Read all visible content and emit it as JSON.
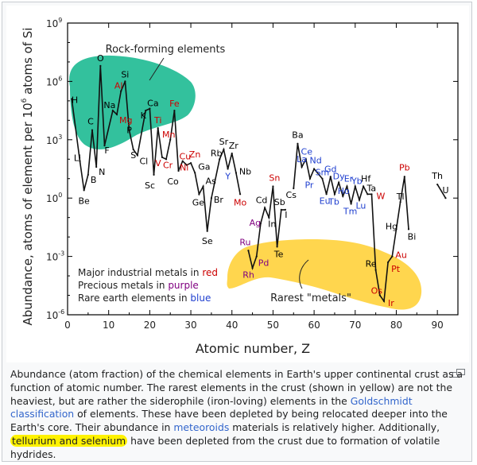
{
  "chart_data": {
    "type": "line",
    "xlabel": "Atomic number, Z",
    "ylabel": "Abundance, atoms of element per 10 6 atoms of Si",
    "xlim": [
      0,
      95
    ],
    "ylim_log10": [
      -6,
      9
    ],
    "x_ticks": [
      "0",
      "10",
      "20",
      "30",
      "40",
      "50",
      "60",
      "70",
      "80",
      "90"
    ],
    "y_ticks": [
      {
        "base": "10",
        "exp": "9",
        "value": 9
      },
      {
        "base": "10",
        "exp": "6",
        "value": 6
      },
      {
        "base": "10",
        "exp": "3",
        "value": 3
      },
      {
        "base": "10",
        "exp": "0",
        "value": 0
      },
      {
        "base": "10",
        "exp": "-3",
        "value": -3
      },
      {
        "base": "10",
        "exp": "-6",
        "value": -6
      }
    ],
    "series_segments": [
      [
        {
          "z": 1,
          "log": 5.1,
          "label": "H",
          "color": "#000000",
          "dx": 8,
          "dy": 5,
          "anchor": "end"
        },
        {
          "z": 3,
          "log": 1.9,
          "label": "Li",
          "color": "#000000",
          "dx": -3,
          "dy": 0,
          "anchor": "middle"
        },
        {
          "z": 4,
          "log": 0.4,
          "label": "Be",
          "color": "#000000",
          "dx": 0,
          "dy": 17,
          "anchor": "middle"
        },
        {
          "z": 5,
          "log": 1.2,
          "label": "B",
          "color": "#000000",
          "dx": 3,
          "dy": 10,
          "anchor": "start"
        },
        {
          "z": 6,
          "log": 3.5,
          "label": "C",
          "color": "#000000",
          "dx": -2,
          "dy": -7,
          "anchor": "middle"
        },
        {
          "z": 7,
          "log": 1.6,
          "label": "N",
          "color": "#000000",
          "dx": 3,
          "dy": 10,
          "anchor": "start"
        },
        {
          "z": 8,
          "log": 6.8,
          "label": "O",
          "color": "#000000",
          "dx": 0,
          "dy": -6,
          "anchor": "middle"
        },
        {
          "z": 9,
          "log": 2.7,
          "label": "F",
          "color": "#000000",
          "dx": 3,
          "dy": 10,
          "anchor": "middle"
        },
        {
          "z": 11,
          "log": 4.5,
          "label": "Na",
          "color": "#000000",
          "dx": -4,
          "dy": -3,
          "anchor": "middle"
        },
        {
          "z": 12,
          "log": 4.3,
          "label": "Mg",
          "color": "#cc0000",
          "dx": 3,
          "dy": 11,
          "anchor": "start"
        },
        {
          "z": 13,
          "log": 5.5,
          "label": "Al",
          "color": "#cc0000",
          "dx": -3,
          "dy": -3,
          "anchor": "middle"
        },
        {
          "z": 14,
          "log": 6.0,
          "label": "Si",
          "color": "#000000",
          "dx": 0,
          "dy": -5,
          "anchor": "middle"
        },
        {
          "z": 15,
          "log": 3.5,
          "label": "P",
          "color": "#000000",
          "dx": 0,
          "dy": 4,
          "anchor": "middle"
        },
        {
          "z": 16,
          "log": 2.5,
          "label": "S",
          "color": "#000000",
          "dx": 0,
          "dy": 11,
          "anchor": "middle"
        },
        {
          "z": 17,
          "log": 2.2,
          "label": "Cl",
          "color": "#000000",
          "dx": 8,
          "dy": 11,
          "anchor": "middle"
        },
        {
          "z": 19,
          "log": 4.5,
          "label": "K",
          "color": "#000000",
          "dx": -3,
          "dy": 10,
          "anchor": "middle"
        },
        {
          "z": 20,
          "log": 4.6,
          "label": "Ca",
          "color": "#000000",
          "dx": 4,
          "dy": -3,
          "anchor": "middle"
        },
        {
          "z": 21,
          "log": 1.2,
          "label": "Sc",
          "color": "#000000",
          "dx": -5,
          "dy": 17,
          "anchor": "middle"
        },
        {
          "z": 22,
          "log": 3.6,
          "label": "Ti",
          "color": "#cc0000",
          "dx": 0,
          "dy": -6,
          "anchor": "middle"
        },
        {
          "z": 23,
          "log": 2.1,
          "label": "V",
          "color": "#cc0000",
          "dx": -5,
          "dy": 11,
          "anchor": "middle"
        },
        {
          "z": 24,
          "log": 2.0,
          "label": "Cr",
          "color": "#cc0000",
          "dx": 2,
          "dy": 11,
          "anchor": "middle"
        },
        {
          "z": 25,
          "log": 3.0,
          "label": "Mn",
          "color": "#cc0000",
          "dx": -2,
          "dy": -3,
          "anchor": "middle"
        },
        {
          "z": 26,
          "log": 4.5,
          "label": "Fe",
          "color": "#cc0000",
          "dx": 0,
          "dy": -5,
          "anchor": "middle"
        },
        {
          "z": 27,
          "log": 1.4,
          "label": "Co",
          "color": "#000000",
          "dx": -7,
          "dy": 17,
          "anchor": "middle"
        },
        {
          "z": 28,
          "log": 1.9,
          "label": "Ni",
          "color": "#cc0000",
          "dx": 2,
          "dy": 12,
          "anchor": "middle"
        },
        {
          "z": 29,
          "log": 1.7,
          "label": "Cu",
          "color": "#cc0000",
          "dx": -2,
          "dy": -7,
          "anchor": "middle"
        },
        {
          "z": 30,
          "log": 1.8,
          "label": "Zn",
          "color": "#cc0000",
          "dx": 5,
          "dy": -7,
          "anchor": "middle"
        },
        {
          "z": 31,
          "log": 1.3,
          "label": "Ga",
          "color": "#000000",
          "dx": 4,
          "dy": -4,
          "anchor": "start"
        },
        {
          "z": 32,
          "log": 0.2,
          "label": "Ge",
          "color": "#000000",
          "dx": -1,
          "dy": 14,
          "anchor": "middle"
        },
        {
          "z": 33,
          "log": 0.6,
          "label": "As",
          "color": "#000000",
          "dx": 3,
          "dy": -3,
          "anchor": "start"
        },
        {
          "z": 34,
          "log": -1.7,
          "label": "Se",
          "color": "#000000",
          "dx": 0,
          "dy": 16,
          "anchor": "middle"
        },
        {
          "z": 35,
          "log": 0.0,
          "label": "Br",
          "color": "#000000",
          "dx": 3,
          "dy": 6,
          "anchor": "start"
        },
        {
          "z": 37,
          "log": 2.0,
          "label": "Rb",
          "color": "#000000",
          "dx": -4,
          "dy": -4,
          "anchor": "middle"
        },
        {
          "z": 38,
          "log": 2.5,
          "label": "Sr",
          "color": "#000000",
          "dx": 0,
          "dy": -6,
          "anchor": "middle"
        },
        {
          "z": 39,
          "log": 1.5,
          "label": "Y",
          "color": "#1f3fcf",
          "dx": 0,
          "dy": 13,
          "anchor": "middle"
        },
        {
          "z": 40,
          "log": 2.3,
          "label": "Zr",
          "color": "#000000",
          "dx": 2,
          "dy": -6,
          "anchor": "middle"
        },
        {
          "z": 41,
          "log": 1.3,
          "label": "Nb",
          "color": "#000000",
          "dx": 4,
          "dy": 2,
          "anchor": "start"
        },
        {
          "z": 42,
          "log": 0.2,
          "label": "Mo",
          "color": "#cc0000",
          "dx": 0,
          "dy": 14,
          "anchor": "middle"
        }
      ],
      [
        {
          "z": 44,
          "log": -2.7,
          "label": "Ru",
          "color": "#800080",
          "dx": -4,
          "dy": -7,
          "anchor": "middle"
        },
        {
          "z": 45,
          "log": -3.6,
          "label": "Rh",
          "color": "#800080",
          "dx": -5,
          "dy": 12,
          "anchor": "middle"
        },
        {
          "z": 46,
          "log": -3.0,
          "label": "Pd",
          "color": "#800080",
          "dx": 2,
          "dy": 12,
          "anchor": "start"
        },
        {
          "z": 47,
          "log": -1.3,
          "label": "Ag",
          "color": "#800080",
          "dx": -7,
          "dy": 3,
          "anchor": "middle"
        },
        {
          "z": 48,
          "log": -0.5,
          "label": "Cd",
          "color": "#000000",
          "dx": -4,
          "dy": -6,
          "anchor": "middle"
        },
        {
          "z": 49,
          "log": -1.0,
          "label": "In",
          "color": "#000000",
          "dx": 4,
          "dy": 12,
          "anchor": "middle"
        },
        {
          "z": 50,
          "log": 0.6,
          "label": "Sn",
          "color": "#cc0000",
          "dx": 2,
          "dy": -7,
          "anchor": "middle"
        },
        {
          "z": 51,
          "log": -2.5,
          "label": "Te",
          "color": "#000000",
          "dx": 2,
          "dy": 13,
          "anchor": "middle"
        },
        {
          "z": 52,
          "log": -0.6,
          "label": "Sb",
          "color": "#000000",
          "dx": -2,
          "dy": -6,
          "anchor": "middle"
        },
        {
          "z": 53,
          "log": -0.6,
          "label": "I",
          "color": "#000000",
          "dx": 1,
          "dy": 10,
          "anchor": "middle"
        }
      ],
      [
        {
          "z": 55,
          "log": 0.5,
          "label": "Cs",
          "color": "#000000",
          "dx": -3,
          "dy": 12,
          "anchor": "middle"
        },
        {
          "z": 56,
          "log": 2.8,
          "label": "Ba",
          "color": "#000000",
          "dx": 0,
          "dy": -7,
          "anchor": "middle"
        },
        {
          "z": 57,
          "log": 1.6,
          "label": "La",
          "color": "#1f3fcf",
          "dx": 0,
          "dy": -6,
          "anchor": "middle"
        },
        {
          "z": 58,
          "log": 2.0,
          "label": "Ce",
          "color": "#1f3fcf",
          "dx": 1,
          "dy": -6,
          "anchor": "middle"
        },
        {
          "z": 59,
          "log": 1.0,
          "label": "Pr",
          "color": "#1f3fcf",
          "dx": -1,
          "dy": 12,
          "anchor": "middle"
        },
        {
          "z": 60,
          "log": 1.5,
          "label": "Nd",
          "color": "#1f3fcf",
          "dx": 2,
          "dy": -7,
          "anchor": "middle"
        },
        {
          "z": 62,
          "log": 1.0,
          "label": "Sm",
          "color": "#1f3fcf",
          "dx": 0,
          "dy": -4,
          "anchor": "middle"
        },
        {
          "z": 63,
          "log": 0.2,
          "label": "Eu",
          "color": "#1f3fcf",
          "dx": -2,
          "dy": 12,
          "anchor": "middle"
        },
        {
          "z": 64,
          "log": 1.1,
          "label": "Gd",
          "color": "#1f3fcf",
          "dx": 0,
          "dy": -6,
          "anchor": "middle"
        },
        {
          "z": 65,
          "log": 0.2,
          "label": "Tb",
          "color": "#1f3fcf",
          "dx": -1,
          "dy": 13,
          "anchor": "middle"
        },
        {
          "z": 66,
          "log": 0.8,
          "label": "Dy",
          "color": "#1f3fcf",
          "dx": 0,
          "dy": -4,
          "anchor": "middle"
        },
        {
          "z": 67,
          "log": 0.1,
          "label": "Ho",
          "color": "#1f3fcf",
          "dx": 1,
          "dy": -3,
          "anchor": "middle"
        },
        {
          "z": 68,
          "log": 0.6,
          "label": "Er",
          "color": "#1f3fcf",
          "dx": 2,
          "dy": -6,
          "anchor": "middle"
        },
        {
          "z": 69,
          "log": -0.3,
          "label": "Tm",
          "color": "#1f3fcf",
          "dx": -1,
          "dy": 13,
          "anchor": "middle"
        },
        {
          "z": 70,
          "log": 0.6,
          "label": "Yb",
          "color": "#1f3fcf",
          "dx": 2,
          "dy": -3,
          "anchor": "middle"
        },
        {
          "z": 71,
          "log": -0.1,
          "label": "Lu",
          "color": "#1f3fcf",
          "dx": 2,
          "dy": 11,
          "anchor": "middle"
        },
        {
          "z": 72,
          "log": 0.6,
          "label": "Hf",
          "color": "#000000",
          "dx": 3,
          "dy": -6,
          "anchor": "middle"
        },
        {
          "z": 73,
          "log": 0.2,
          "label": "Ta",
          "color": "#000000",
          "dx": 5,
          "dy": -4,
          "anchor": "middle"
        },
        {
          "z": 74,
          "log": 0.2,
          "label": "W",
          "color": "#cc0000",
          "dx": 6,
          "dy": 6,
          "anchor": "start"
        },
        {
          "z": 75,
          "log": -3.7,
          "label": "Re",
          "color": "#000000",
          "dx": -6,
          "dy": -4,
          "anchor": "middle"
        },
        {
          "z": 76,
          "log": -5.0,
          "label": "Os",
          "color": "#cc0000",
          "dx": -4,
          "dy": -2,
          "anchor": "middle"
        },
        {
          "z": 77,
          "log": -5.3,
          "label": "Ir",
          "color": "#cc0000",
          "dx": 5,
          "dy": 6,
          "anchor": "start"
        },
        {
          "z": 78,
          "log": -3.3,
          "label": "Pt",
          "color": "#cc0000",
          "dx": 4,
          "dy": 12,
          "anchor": "start"
        },
        {
          "z": 79,
          "log": -3.0,
          "label": "Au",
          "color": "#cc0000",
          "dx": 4,
          "dy": 2,
          "anchor": "start"
        },
        {
          "z": 80,
          "log": -1.6,
          "label": "Hg",
          "color": "#000000",
          "dx": -6,
          "dy": 0,
          "anchor": "middle"
        },
        {
          "z": 81,
          "log": -0.2,
          "label": "Tl",
          "color": "#000000",
          "dx": 0,
          "dy": -3,
          "anchor": "middle"
        },
        {
          "z": 82,
          "log": 1.1,
          "label": "Pb",
          "color": "#cc0000",
          "dx": 0,
          "dy": -8,
          "anchor": "middle"
        },
        {
          "z": 83,
          "log": -1.6,
          "label": "Bi",
          "color": "#000000",
          "dx": 4,
          "dy": 13,
          "anchor": "middle"
        }
      ],
      [
        {
          "z": 90,
          "log": 0.7,
          "label": "Th",
          "color": "#000000",
          "dx": 0,
          "dy": -7,
          "anchor": "middle"
        },
        {
          "z": 92,
          "log": 0.0,
          "label": "U",
          "color": "#000000",
          "dx": 0,
          "dy": -6,
          "anchor": "middle"
        }
      ]
    ],
    "region_labels": {
      "rock_forming": "Rock-forming elements",
      "rarest_metals": "Rarest \"metals\""
    },
    "region_colors": {
      "rock_forming": "#17b890",
      "rarest_metals": "#ffd23f"
    },
    "legend": [
      {
        "text": "Major industrial metals in ",
        "key": "red",
        "color": "#cc0000"
      },
      {
        "text": "Precious metals in ",
        "key": "purple",
        "color": "#800080"
      },
      {
        "text": "Rare earth elements in ",
        "key": "blue",
        "color": "#1f3fcf"
      }
    ]
  },
  "caption": {
    "part1": "Abundance (atom fraction) of the chemical elements in Earth's upper continental crust as a function of atomic number. The rarest elements in the crust (shown in yellow) are not the heaviest, but are rather the siderophile (iron-loving) elements in the ",
    "link1": "Goldschmidt classification",
    "part2": " of elements. These have been depleted by being relocated deeper into the Earth's core. Their abundance in ",
    "link2": "meteoroids",
    "part3": " materials is relatively higher. Additionally, ",
    "highlight": "tellurium and selenium",
    "part4": " have been depleted from the crust due to formation of volatile hydrides."
  },
  "highlight_color": "#fff200",
  "link_color": "#3366cc",
  "icons": {
    "enlarge": "enlarge-icon"
  }
}
